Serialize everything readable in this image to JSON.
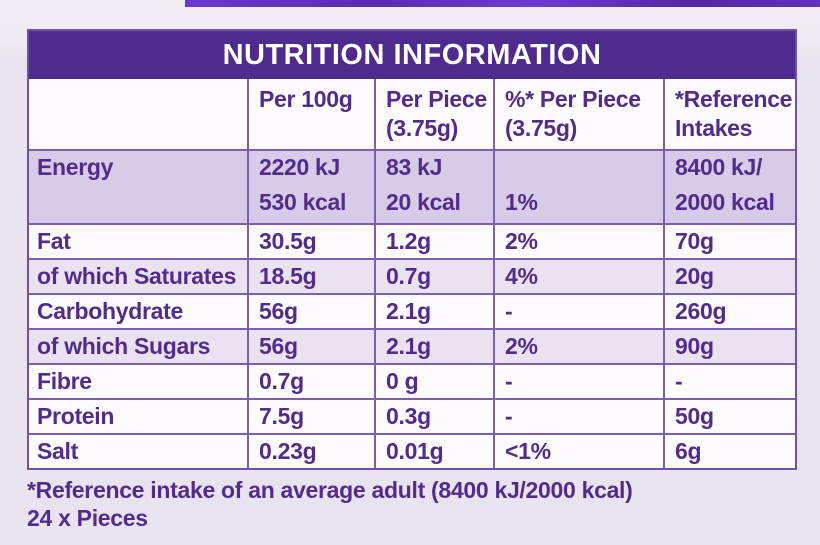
{
  "colors": {
    "page_background": "#eae4f0",
    "package_strip_purple": "#6130c0",
    "title_band_purple": "#4e2b8e",
    "table_border_purple": "#7c5fae",
    "text_purple": "#502d8c",
    "title_text": "#ffffff",
    "energy_row_background": "#d8cbe8",
    "shaded_row_background": "#eae2f1",
    "plain_row_background": "#fdfbfe"
  },
  "table": {
    "title": "NUTRITION INFORMATION",
    "header": {
      "col1": "",
      "col2": "Per 100g",
      "col3_line1": "Per Piece",
      "col3_line2": "(3.75g)",
      "col4_line1": "%* Per Piece",
      "col4_line2": "(3.75g)",
      "col5_line1": "*Reference",
      "col5_line2": "Intakes"
    },
    "energy_row": {
      "label": "Energy",
      "per100_line1": "2220 kJ",
      "per100_line2": "530 kcal",
      "per_piece_line1": "83 kJ",
      "per_piece_line2": "20 kcal",
      "pct_per_piece": "1%",
      "reference_line1": "8400 kJ/",
      "reference_line2": "2000 kcal"
    },
    "rows": [
      {
        "label": "Fat",
        "per100": "30.5g",
        "per_piece": "1.2g",
        "pct_per_piece": "2%",
        "reference": "70g"
      },
      {
        "label": "of which Saturates",
        "per100": "18.5g",
        "per_piece": "0.7g",
        "pct_per_piece": "4%",
        "reference": "20g"
      },
      {
        "label": "Carbohydrate",
        "per100": "56g",
        "per_piece": "2.1g",
        "pct_per_piece": "-",
        "reference": "260g"
      },
      {
        "label": "of which Sugars",
        "per100": "56g",
        "per_piece": "2.1g",
        "pct_per_piece": "2%",
        "reference": "90g"
      },
      {
        "label": "Fibre",
        "per100": "0.7g",
        "per_piece": "0 g",
        "pct_per_piece": "-",
        "reference": "-"
      },
      {
        "label": "Protein",
        "per100": "7.5g",
        "per_piece": "0.3g",
        "pct_per_piece": "-",
        "reference": "50g"
      },
      {
        "label": "Salt",
        "per100": "0.23g",
        "per_piece": "0.01g",
        "pct_per_piece": "<1%",
        "reference": "6g"
      }
    ]
  },
  "footer": {
    "reference_note": "*Reference intake of an average adult (8400 kJ/2000 kcal)",
    "pieces_note": "24 x Pieces"
  }
}
